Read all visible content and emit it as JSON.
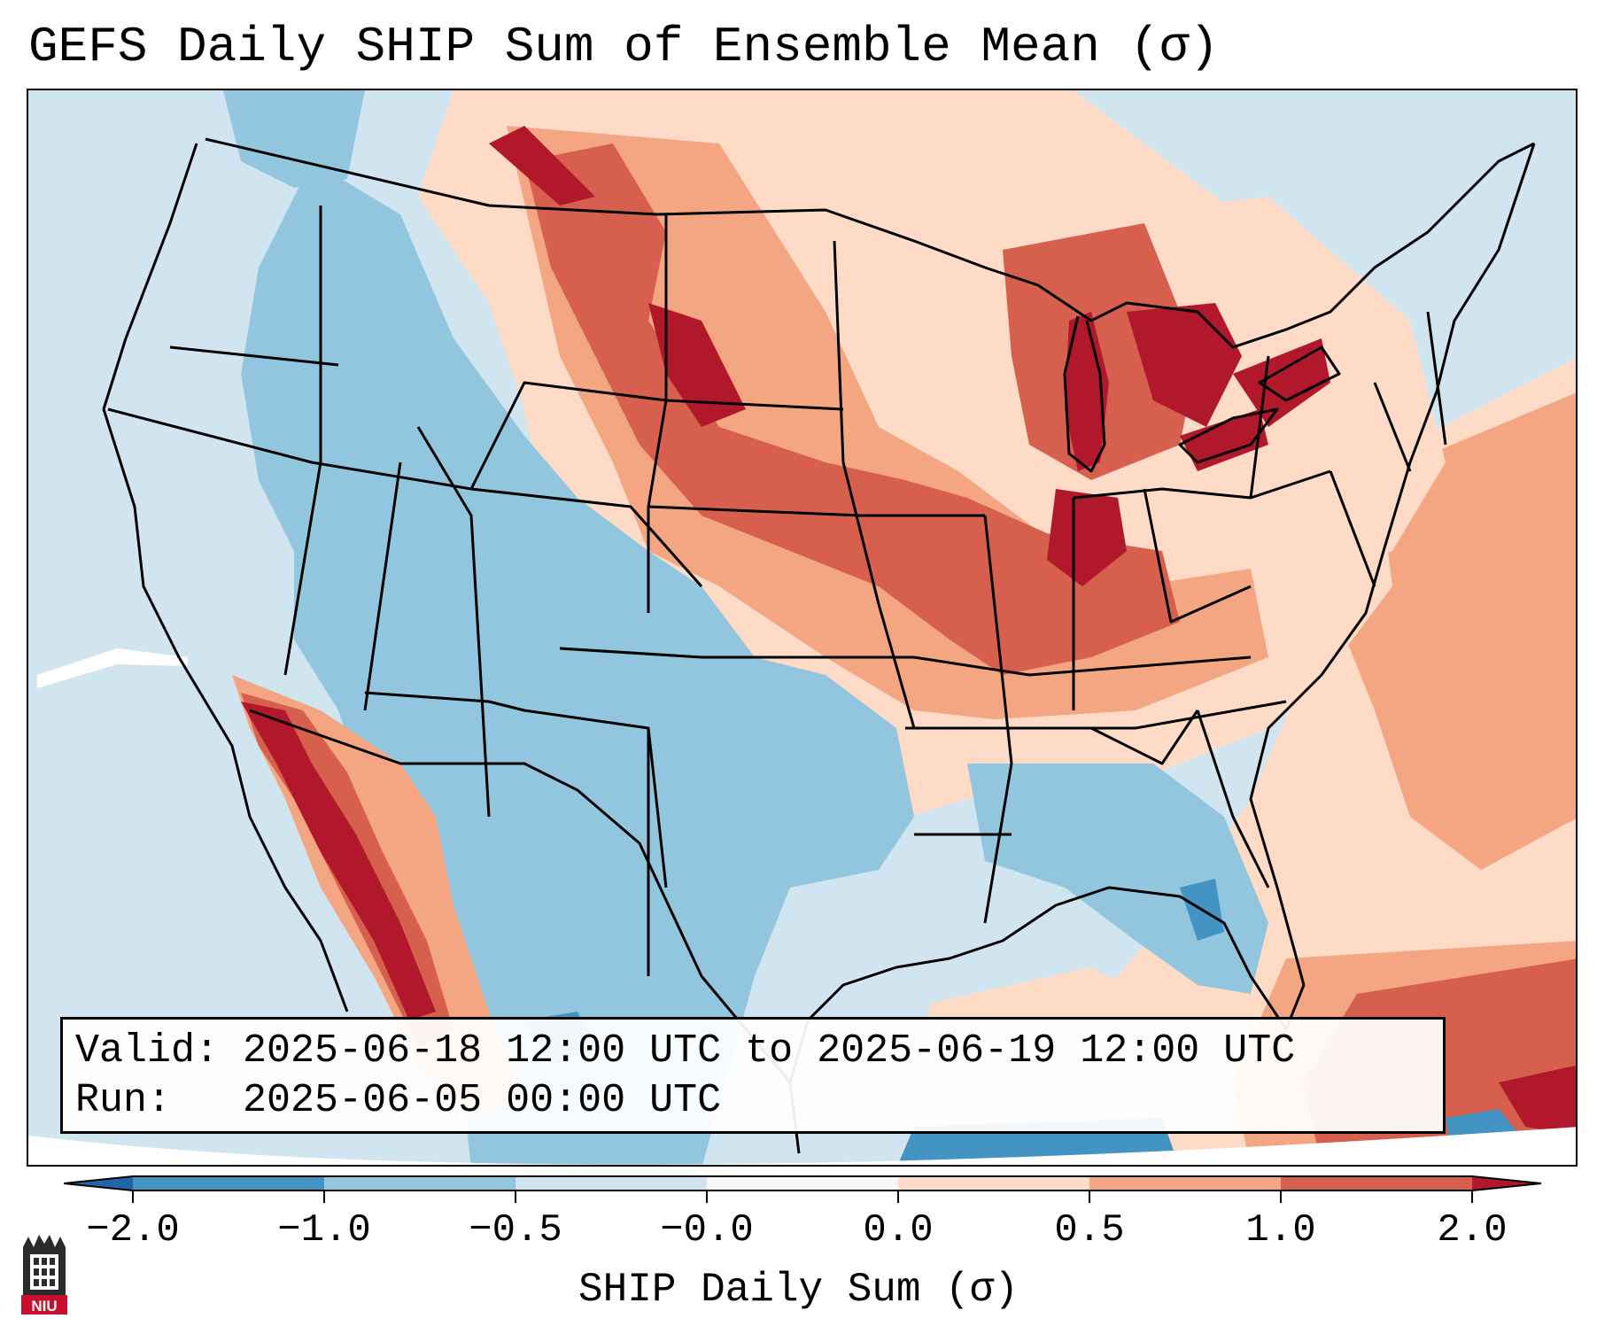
{
  "title": "GEFS Daily SHIP Sum of Ensemble Mean (σ)",
  "info": {
    "valid_label": "Valid:",
    "valid_value": "2025-06-18 12:00 UTC to 2025-06-19 12:00 UTC",
    "run_label": "Run:",
    "run_value": "2025-06-05 00:00 UTC"
  },
  "colorbar": {
    "title": "SHIP Daily Sum (σ)",
    "ticks": [
      "−2.0",
      "−1.0",
      "−0.5",
      "−0.0",
      "0.0",
      "0.5",
      "1.0",
      "2.0"
    ],
    "colors": [
      "#2166ac",
      "#4393c3",
      "#92c5de",
      "#d1e5f0",
      "#f7f7f7",
      "#fddbc7",
      "#f4a582",
      "#d6604d",
      "#b2182b"
    ]
  },
  "logo": {
    "text": "NIU"
  },
  "map": {
    "projection": "Lambert conformal CONUS",
    "regions": [
      {
        "name": "pacific-northwest",
        "category": "-0.5 to 0.0"
      },
      {
        "name": "northern-rockies",
        "category": "-1.0 to -0.5"
      },
      {
        "name": "northern-plains",
        "category": "0.5 to 1.0"
      },
      {
        "name": "great-lakes",
        "category": ">2.0"
      },
      {
        "name": "midwest",
        "category": "1.0 to 2.0"
      },
      {
        "name": "texas",
        "category": "-1.0 to -0.5"
      },
      {
        "name": "southern-california-baja",
        "category": "1.0 to 2.0"
      },
      {
        "name": "gulf-coast",
        "category": "-0.5 to 0.0"
      },
      {
        "name": "atlantic-ocean",
        "category": "0.0 to 1.0"
      },
      {
        "name": "caribbean",
        "category": "1.0 to 2.0"
      }
    ]
  }
}
